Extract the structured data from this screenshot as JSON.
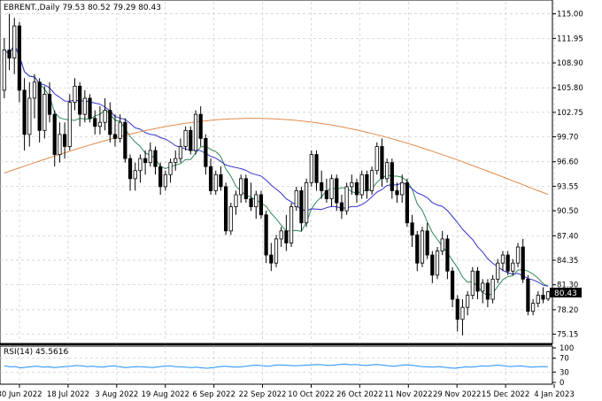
{
  "chart_data": {
    "type": "candlestick",
    "symbol_line": "EBRENT.,Daily  79.53 80.52 79.29 80.43",
    "price_axis": {
      "ticks": [
        "115.00",
        "111.95",
        "108.90",
        "105.80",
        "102.75",
        "99.70",
        "96.60",
        "93.55",
        "90.50",
        "87.40",
        "84.35",
        "81.30",
        "78.20",
        "75.15"
      ],
      "ylim": [
        74.0,
        116.5
      ],
      "current_price": "80.43"
    },
    "x_axis_labels": [
      "30 Jun 2022",
      "18 Jul 2022",
      "3 Aug 2022",
      "19 Aug 2022",
      "6 Sep 2022",
      "22 Sep 2022",
      "10 Oct 2022",
      "26 Oct 2022",
      "11 Nov 2022",
      "29 Nov 2022",
      "15 Dec 2022",
      "4 Jan 2023"
    ],
    "rsi": {
      "label": "RSI(14) 45.5616",
      "ticks": [
        "100",
        "70",
        "30",
        "0"
      ],
      "approx_values": [
        48,
        45,
        46,
        42,
        44,
        46,
        47,
        44,
        45,
        43,
        44,
        46,
        47,
        49,
        48,
        46,
        47,
        45,
        44,
        47,
        48,
        45,
        43,
        44,
        46,
        45,
        44,
        43,
        45,
        47,
        48,
        46,
        45,
        44,
        43,
        44,
        42,
        41,
        43,
        45,
        47,
        46,
        44,
        45,
        47,
        49,
        50,
        48,
        47,
        49,
        51,
        50,
        49,
        48,
        49,
        50,
        51,
        52,
        51,
        49,
        50,
        52,
        53,
        51,
        52,
        50,
        49,
        51,
        52,
        50,
        48,
        47,
        49,
        51,
        50,
        48,
        46,
        45,
        44,
        46,
        44,
        42,
        41,
        43,
        45,
        44,
        46,
        48,
        47,
        49,
        50,
        48,
        46,
        47,
        48,
        46,
        44,
        45,
        46,
        45.5616
      ]
    },
    "candles": [
      {
        "o": 105.5,
        "h": 112.0,
        "l": 104.5,
        "c": 110.5
      },
      {
        "o": 110.5,
        "h": 115.0,
        "l": 108.0,
        "c": 109.5
      },
      {
        "o": 109.5,
        "h": 114.5,
        "l": 107.5,
        "c": 113.5
      },
      {
        "o": 113.5,
        "h": 114.0,
        "l": 104.0,
        "c": 105.5
      },
      {
        "o": 105.5,
        "h": 107.0,
        "l": 98.0,
        "c": 100.0
      },
      {
        "o": 100.0,
        "h": 106.5,
        "l": 98.5,
        "c": 104.5
      },
      {
        "o": 104.5,
        "h": 107.5,
        "l": 102.0,
        "c": 106.5
      },
      {
        "o": 106.5,
        "h": 107.0,
        "l": 99.0,
        "c": 100.5
      },
      {
        "o": 100.5,
        "h": 106.0,
        "l": 99.5,
        "c": 105.0
      },
      {
        "o": 105.0,
        "h": 106.5,
        "l": 101.5,
        "c": 102.5
      },
      {
        "o": 102.5,
        "h": 103.0,
        "l": 96.0,
        "c": 97.5
      },
      {
        "o": 97.5,
        "h": 101.5,
        "l": 96.5,
        "c": 100.0
      },
      {
        "o": 100.0,
        "h": 101.5,
        "l": 97.0,
        "c": 98.5
      },
      {
        "o": 98.5,
        "h": 105.0,
        "l": 98.0,
        "c": 104.0
      },
      {
        "o": 104.0,
        "h": 107.0,
        "l": 103.0,
        "c": 106.0
      },
      {
        "o": 106.0,
        "h": 106.5,
        "l": 101.0,
        "c": 102.5
      },
      {
        "o": 102.5,
        "h": 105.5,
        "l": 101.5,
        "c": 104.5
      },
      {
        "o": 104.5,
        "h": 105.0,
        "l": 101.5,
        "c": 102.0
      },
      {
        "o": 102.0,
        "h": 103.0,
        "l": 100.0,
        "c": 101.0
      },
      {
        "o": 101.0,
        "h": 103.5,
        "l": 100.0,
        "c": 101.5
      },
      {
        "o": 101.5,
        "h": 104.5,
        "l": 100.5,
        "c": 103.0
      },
      {
        "o": 103.0,
        "h": 104.0,
        "l": 99.0,
        "c": 100.0
      },
      {
        "o": 100.0,
        "h": 102.5,
        "l": 98.5,
        "c": 99.5
      },
      {
        "o": 99.5,
        "h": 102.5,
        "l": 99.0,
        "c": 101.5
      },
      {
        "o": 101.5,
        "h": 102.0,
        "l": 96.5,
        "c": 97.0
      },
      {
        "o": 97.0,
        "h": 97.5,
        "l": 93.0,
        "c": 94.5
      },
      {
        "o": 94.5,
        "h": 96.5,
        "l": 93.0,
        "c": 95.5
      },
      {
        "o": 95.5,
        "h": 97.5,
        "l": 94.0,
        "c": 97.0
      },
      {
        "o": 97.0,
        "h": 98.0,
        "l": 95.0,
        "c": 96.5
      },
      {
        "o": 96.5,
        "h": 99.0,
        "l": 96.0,
        "c": 98.0
      },
      {
        "o": 98.0,
        "h": 98.5,
        "l": 95.0,
        "c": 96.0
      },
      {
        "o": 96.0,
        "h": 96.5,
        "l": 92.5,
        "c": 93.5
      },
      {
        "o": 93.5,
        "h": 95.5,
        "l": 93.0,
        "c": 95.0
      },
      {
        "o": 95.0,
        "h": 97.0,
        "l": 94.0,
        "c": 96.5
      },
      {
        "o": 96.5,
        "h": 98.0,
        "l": 95.5,
        "c": 97.0
      },
      {
        "o": 97.0,
        "h": 99.5,
        "l": 96.5,
        "c": 98.5
      },
      {
        "o": 98.5,
        "h": 101.0,
        "l": 98.0,
        "c": 100.5
      },
      {
        "o": 100.5,
        "h": 101.0,
        "l": 97.5,
        "c": 98.0
      },
      {
        "o": 98.0,
        "h": 103.0,
        "l": 97.5,
        "c": 102.5
      },
      {
        "o": 102.5,
        "h": 103.5,
        "l": 98.5,
        "c": 99.5
      },
      {
        "o": 99.5,
        "h": 100.0,
        "l": 95.0,
        "c": 96.0
      },
      {
        "o": 96.0,
        "h": 97.0,
        "l": 92.5,
        "c": 93.0
      },
      {
        "o": 93.0,
        "h": 95.5,
        "l": 92.5,
        "c": 95.0
      },
      {
        "o": 95.0,
        "h": 96.0,
        "l": 93.0,
        "c": 93.5
      },
      {
        "o": 93.5,
        "h": 94.0,
        "l": 87.5,
        "c": 88.0
      },
      {
        "o": 88.0,
        "h": 91.5,
        "l": 87.5,
        "c": 91.0
      },
      {
        "o": 91.0,
        "h": 93.0,
        "l": 90.0,
        "c": 92.5
      },
      {
        "o": 92.5,
        "h": 95.0,
        "l": 91.5,
        "c": 94.5
      },
      {
        "o": 94.5,
        "h": 95.0,
        "l": 91.5,
        "c": 92.0
      },
      {
        "o": 92.0,
        "h": 94.0,
        "l": 90.5,
        "c": 91.0
      },
      {
        "o": 91.0,
        "h": 93.0,
        "l": 89.5,
        "c": 92.5
      },
      {
        "o": 92.5,
        "h": 93.0,
        "l": 89.5,
        "c": 90.0
      },
      {
        "o": 90.0,
        "h": 90.5,
        "l": 84.0,
        "c": 85.0
      },
      {
        "o": 85.0,
        "h": 86.5,
        "l": 83.0,
        "c": 84.0
      },
      {
        "o": 84.0,
        "h": 87.5,
        "l": 83.5,
        "c": 87.0
      },
      {
        "o": 87.0,
        "h": 88.5,
        "l": 86.0,
        "c": 88.0
      },
      {
        "o": 88.0,
        "h": 90.0,
        "l": 85.5,
        "c": 86.5
      },
      {
        "o": 86.5,
        "h": 91.5,
        "l": 86.0,
        "c": 91.0
      },
      {
        "o": 91.0,
        "h": 93.5,
        "l": 90.5,
        "c": 93.0
      },
      {
        "o": 93.0,
        "h": 93.5,
        "l": 88.0,
        "c": 89.0
      },
      {
        "o": 89.0,
        "h": 94.5,
        "l": 88.5,
        "c": 94.0
      },
      {
        "o": 94.0,
        "h": 98.0,
        "l": 93.5,
        "c": 97.5
      },
      {
        "o": 97.5,
        "h": 98.0,
        "l": 93.0,
        "c": 94.0
      },
      {
        "o": 94.0,
        "h": 95.5,
        "l": 92.0,
        "c": 93.0
      },
      {
        "o": 93.0,
        "h": 94.5,
        "l": 91.5,
        "c": 92.0
      },
      {
        "o": 92.0,
        "h": 95.0,
        "l": 91.0,
        "c": 94.5
      },
      {
        "o": 94.5,
        "h": 95.0,
        "l": 90.5,
        "c": 91.5
      },
      {
        "o": 91.5,
        "h": 92.5,
        "l": 89.5,
        "c": 90.5
      },
      {
        "o": 90.5,
        "h": 94.0,
        "l": 90.0,
        "c": 93.5
      },
      {
        "o": 93.5,
        "h": 95.0,
        "l": 92.5,
        "c": 94.0
      },
      {
        "o": 94.0,
        "h": 94.5,
        "l": 91.5,
        "c": 92.5
      },
      {
        "o": 92.5,
        "h": 95.5,
        "l": 92.0,
        "c": 95.0
      },
      {
        "o": 95.0,
        "h": 95.5,
        "l": 92.0,
        "c": 93.0
      },
      {
        "o": 93.0,
        "h": 96.0,
        "l": 92.5,
        "c": 95.5
      },
      {
        "o": 95.5,
        "h": 99.0,
        "l": 95.0,
        "c": 98.5
      },
      {
        "o": 98.5,
        "h": 99.5,
        "l": 93.5,
        "c": 94.5
      },
      {
        "o": 94.5,
        "h": 97.0,
        "l": 94.0,
        "c": 96.5
      },
      {
        "o": 96.5,
        "h": 97.0,
        "l": 92.0,
        "c": 93.0
      },
      {
        "o": 93.0,
        "h": 94.0,
        "l": 91.5,
        "c": 92.5
      },
      {
        "o": 92.5,
        "h": 95.0,
        "l": 91.5,
        "c": 94.0
      },
      {
        "o": 94.0,
        "h": 94.5,
        "l": 88.5,
        "c": 89.0
      },
      {
        "o": 89.0,
        "h": 90.0,
        "l": 86.0,
        "c": 87.5
      },
      {
        "o": 87.5,
        "h": 88.0,
        "l": 83.0,
        "c": 84.0
      },
      {
        "o": 84.0,
        "h": 88.5,
        "l": 83.5,
        "c": 88.0
      },
      {
        "o": 88.0,
        "h": 89.0,
        "l": 84.5,
        "c": 85.0
      },
      {
        "o": 85.0,
        "h": 85.5,
        "l": 81.5,
        "c": 82.5
      },
      {
        "o": 82.5,
        "h": 86.0,
        "l": 82.0,
        "c": 85.5
      },
      {
        "o": 85.5,
        "h": 88.0,
        "l": 85.0,
        "c": 87.0
      },
      {
        "o": 87.0,
        "h": 87.5,
        "l": 82.0,
        "c": 83.0
      },
      {
        "o": 83.0,
        "h": 83.5,
        "l": 78.5,
        "c": 79.5
      },
      {
        "o": 79.5,
        "h": 80.0,
        "l": 75.5,
        "c": 77.0
      },
      {
        "o": 77.0,
        "h": 79.5,
        "l": 75.0,
        "c": 78.5
      },
      {
        "o": 78.5,
        "h": 80.5,
        "l": 77.5,
        "c": 80.0
      },
      {
        "o": 80.0,
        "h": 83.5,
        "l": 79.5,
        "c": 83.0
      },
      {
        "o": 83.0,
        "h": 83.5,
        "l": 79.5,
        "c": 80.5
      },
      {
        "o": 80.5,
        "h": 82.0,
        "l": 79.0,
        "c": 81.5
      },
      {
        "o": 81.5,
        "h": 82.0,
        "l": 78.5,
        "c": 79.5
      },
      {
        "o": 79.5,
        "h": 82.5,
        "l": 79.0,
        "c": 82.0
      },
      {
        "o": 82.0,
        "h": 84.5,
        "l": 81.5,
        "c": 84.0
      },
      {
        "o": 84.0,
        "h": 85.5,
        "l": 83.0,
        "c": 85.0
      },
      {
        "o": 85.0,
        "h": 85.5,
        "l": 82.5,
        "c": 83.0
      },
      {
        "o": 83.0,
        "h": 84.5,
        "l": 82.5,
        "c": 84.0
      },
      {
        "o": 84.0,
        "h": 86.5,
        "l": 83.5,
        "c": 86.0
      },
      {
        "o": 86.0,
        "h": 87.0,
        "l": 81.5,
        "c": 82.0
      },
      {
        "o": 82.0,
        "h": 82.5,
        "l": 77.5,
        "c": 78.0
      },
      {
        "o": 78.0,
        "h": 79.5,
        "l": 77.5,
        "c": 79.0
      },
      {
        "o": 79.0,
        "h": 80.5,
        "l": 78.5,
        "c": 80.0
      },
      {
        "o": 80.0,
        "h": 81.0,
        "l": 79.0,
        "c": 79.5
      },
      {
        "o": 79.53,
        "h": 80.52,
        "l": 79.29,
        "c": 80.43
      }
    ],
    "grid": true
  },
  "colors": {
    "candle": "#000000",
    "grid": "#c8c8c8",
    "ma_fast": "#2e8b57",
    "ma_mid": "#3333cc",
    "ma_slow": "#e08a4a",
    "rsi_line": "#1e90ff"
  }
}
